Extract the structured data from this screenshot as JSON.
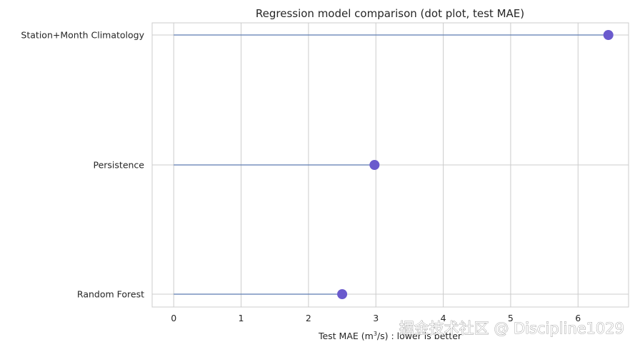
{
  "chart_data": {
    "type": "dot",
    "title": "Regression model comparison (dot plot, test MAE)",
    "xlabel_prefix": "Test MAE (m",
    "xlabel_sup": "3",
    "xlabel_suffix": "/s) : lower is better",
    "ylabel": "",
    "categories": [
      "Station+Month Climatology",
      "Persistence",
      "Random Forest"
    ],
    "values": [
      6.45,
      2.98,
      2.5
    ],
    "xlim": [
      -0.32,
      6.75
    ],
    "xticks": [
      0,
      1,
      2,
      3,
      4,
      5,
      6
    ],
    "grid": true,
    "colors": {
      "dot": "#6a5acd",
      "stem": "#4c72b0",
      "grid": "#cccccc",
      "text": "#262626"
    }
  },
  "watermark": "掘金技术社区 @ Discipline1029"
}
